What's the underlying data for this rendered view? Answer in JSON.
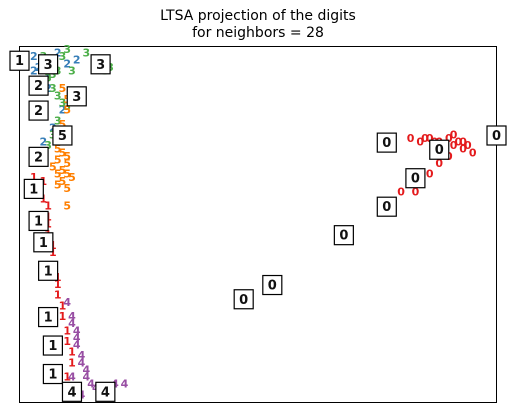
{
  "chart_data": {
    "type": "scatter",
    "title": "LTSA projection of the digits\nfor neighbors = 28",
    "title_lines": [
      "LTSA projection of the digits",
      "for neighbors = 28"
    ],
    "xlabel": "",
    "ylabel": "",
    "xlim": [
      0,
      1
    ],
    "ylim": [
      0,
      1
    ],
    "grid": false,
    "axis_ticks": false,
    "series": [
      {
        "label": "0",
        "color": "#e41a1c",
        "points": [
          [
            0.78,
            0.74
          ],
          [
            0.82,
            0.74
          ],
          [
            0.84,
            0.73
          ],
          [
            0.85,
            0.74
          ],
          [
            0.86,
            0.74
          ],
          [
            0.87,
            0.73
          ],
          [
            0.88,
            0.73
          ],
          [
            0.89,
            0.72
          ],
          [
            0.9,
            0.74
          ],
          [
            0.91,
            0.72
          ],
          [
            0.92,
            0.73
          ],
          [
            0.93,
            0.71
          ],
          [
            0.94,
            0.72
          ],
          [
            0.95,
            0.7
          ],
          [
            0.9,
            0.69
          ],
          [
            0.88,
            0.67
          ],
          [
            0.86,
            0.64
          ],
          [
            0.83,
            0.59
          ],
          [
            0.8,
            0.59
          ],
          [
            0.91,
            0.75
          ],
          [
            0.93,
            0.73
          ]
        ]
      },
      {
        "label": "1",
        "color": "#e41a1c",
        "points": [
          [
            0.04,
            0.69
          ],
          [
            0.05,
            0.62
          ],
          [
            0.05,
            0.57
          ],
          [
            0.06,
            0.55
          ],
          [
            0.06,
            0.5
          ],
          [
            0.06,
            0.47
          ],
          [
            0.07,
            0.44
          ],
          [
            0.07,
            0.42
          ],
          [
            0.07,
            0.38
          ],
          [
            0.08,
            0.35
          ],
          [
            0.08,
            0.33
          ],
          [
            0.08,
            0.3
          ],
          [
            0.09,
            0.27
          ],
          [
            0.09,
            0.24
          ],
          [
            0.1,
            0.2
          ],
          [
            0.1,
            0.17
          ],
          [
            0.11,
            0.14
          ],
          [
            0.11,
            0.11
          ],
          [
            0.1,
            0.07
          ],
          [
            0.11,
            0.04
          ],
          [
            0.03,
            0.63
          ],
          [
            0.06,
            0.52
          ]
        ]
      },
      {
        "label": "2",
        "color": "#377eb8",
        "points": [
          [
            0.03,
            0.93
          ],
          [
            0.04,
            0.94
          ],
          [
            0.05,
            0.95
          ],
          [
            0.06,
            0.92
          ],
          [
            0.07,
            0.96
          ],
          [
            0.1,
            0.95
          ],
          [
            0.12,
            0.96
          ],
          [
            0.07,
            0.77
          ],
          [
            0.05,
            0.73
          ],
          [
            0.04,
            0.9
          ],
          [
            0.03,
            0.97
          ],
          [
            0.08,
            0.98
          ],
          [
            0.06,
            0.88
          ],
          [
            0.09,
            0.82
          ]
        ]
      },
      {
        "label": "3",
        "color": "#4daf4a",
        "points": [
          [
            0.06,
            0.91
          ],
          [
            0.07,
            0.92
          ],
          [
            0.08,
            0.93
          ],
          [
            0.09,
            0.97
          ],
          [
            0.1,
            0.99
          ],
          [
            0.11,
            0.93
          ],
          [
            0.14,
            0.98
          ],
          [
            0.18,
            0.93
          ],
          [
            0.19,
            0.94
          ],
          [
            0.07,
            0.88
          ],
          [
            0.08,
            0.86
          ],
          [
            0.09,
            0.84
          ],
          [
            0.1,
            0.83
          ],
          [
            0.08,
            0.79
          ],
          [
            0.07,
            0.75
          ],
          [
            0.06,
            0.72
          ],
          [
            0.05,
            0.97
          ]
        ]
      },
      {
        "label": "4",
        "color": "#984ea3",
        "points": [
          [
            0.1,
            0.28
          ],
          [
            0.11,
            0.24
          ],
          [
            0.11,
            0.22
          ],
          [
            0.12,
            0.2
          ],
          [
            0.12,
            0.18
          ],
          [
            0.12,
            0.16
          ],
          [
            0.13,
            0.13
          ],
          [
            0.13,
            0.11
          ],
          [
            0.14,
            0.09
          ],
          [
            0.14,
            0.07
          ],
          [
            0.15,
            0.05
          ],
          [
            0.16,
            0.04
          ],
          [
            0.18,
            0.04
          ],
          [
            0.2,
            0.05
          ],
          [
            0.22,
            0.05
          ],
          [
            0.12,
            0.04
          ],
          [
            0.13,
            0.02
          ],
          [
            0.11,
            0.07
          ]
        ]
      },
      {
        "label": "5",
        "color": "#ff7f00",
        "points": [
          [
            0.09,
            0.88
          ],
          [
            0.1,
            0.85
          ],
          [
            0.1,
            0.82
          ],
          [
            0.09,
            0.78
          ],
          [
            0.08,
            0.74
          ],
          [
            0.08,
            0.71
          ],
          [
            0.09,
            0.7
          ],
          [
            0.1,
            0.69
          ],
          [
            0.1,
            0.67
          ],
          [
            0.09,
            0.65
          ],
          [
            0.08,
            0.64
          ],
          [
            0.09,
            0.62
          ],
          [
            0.1,
            0.6
          ],
          [
            0.1,
            0.55
          ],
          [
            0.08,
            0.68
          ],
          [
            0.07,
            0.66
          ],
          [
            0.1,
            0.64
          ],
          [
            0.11,
            0.63
          ],
          [
            0.08,
            0.61
          ]
        ]
      }
    ],
    "thumbnails": [
      {
        "digit": "1",
        "x": 0.0,
        "y": 0.96
      },
      {
        "digit": "3",
        "x": 0.06,
        "y": 0.95
      },
      {
        "digit": "3",
        "x": 0.17,
        "y": 0.95
      },
      {
        "digit": "2",
        "x": 0.04,
        "y": 0.89
      },
      {
        "digit": "3",
        "x": 0.12,
        "y": 0.86
      },
      {
        "digit": "2",
        "x": 0.04,
        "y": 0.82
      },
      {
        "digit": "5",
        "x": 0.09,
        "y": 0.75
      },
      {
        "digit": "2",
        "x": 0.04,
        "y": 0.69
      },
      {
        "digit": "1",
        "x": 0.03,
        "y": 0.6
      },
      {
        "digit": "1",
        "x": 0.04,
        "y": 0.51
      },
      {
        "digit": "1",
        "x": 0.05,
        "y": 0.45
      },
      {
        "digit": "1",
        "x": 0.06,
        "y": 0.37
      },
      {
        "digit": "1",
        "x": 0.06,
        "y": 0.24
      },
      {
        "digit": "1",
        "x": 0.07,
        "y": 0.16
      },
      {
        "digit": "1",
        "x": 0.07,
        "y": 0.08
      },
      {
        "digit": "4",
        "x": 0.11,
        "y": 0.03
      },
      {
        "digit": "4",
        "x": 0.18,
        "y": 0.03
      },
      {
        "digit": "0",
        "x": 0.77,
        "y": 0.73
      },
      {
        "digit": "0",
        "x": 0.88,
        "y": 0.71
      },
      {
        "digit": "0",
        "x": 1.0,
        "y": 0.75
      },
      {
        "digit": "0",
        "x": 0.83,
        "y": 0.63
      },
      {
        "digit": "0",
        "x": 0.77,
        "y": 0.55
      },
      {
        "digit": "0",
        "x": 0.68,
        "y": 0.47
      },
      {
        "digit": "0",
        "x": 0.53,
        "y": 0.33
      },
      {
        "digit": "0",
        "x": 0.47,
        "y": 0.29
      }
    ]
  },
  "colors": {
    "digit_0": "#e41a1c",
    "digit_1": "#e41a1c",
    "digit_2": "#377eb8",
    "digit_3": "#4daf4a",
    "digit_4": "#984ea3",
    "digit_5": "#ff7f00"
  }
}
